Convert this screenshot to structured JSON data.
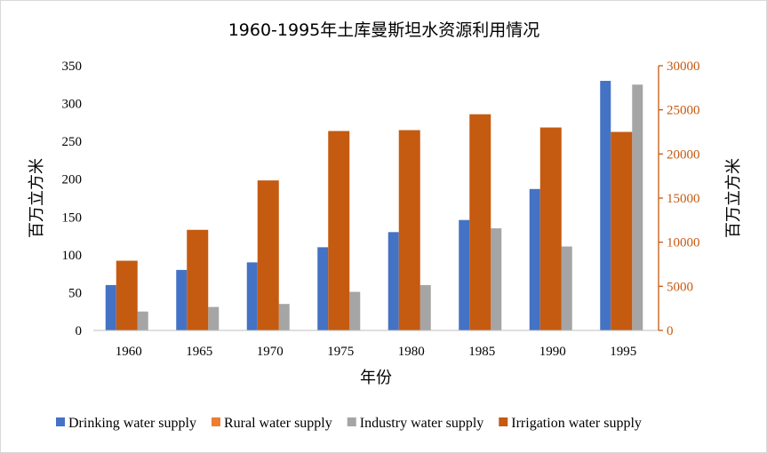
{
  "chart_data": {
    "type": "bar",
    "title": "1960-1995年土库曼斯坦水资源利用情况",
    "xlabel": "年份",
    "ylabel_left": "百万立方米",
    "ylabel_right": "百万立方米",
    "categories": [
      "1960",
      "1965",
      "1970",
      "1975",
      "1980",
      "1985",
      "1990",
      "1995"
    ],
    "ylim_left": [
      0,
      350
    ],
    "yticks_left": [
      0,
      50,
      100,
      150,
      200,
      250,
      300,
      350
    ],
    "ylim_right": [
      0,
      30000
    ],
    "yticks_right": [
      0,
      5000,
      10000,
      15000,
      20000,
      25000,
      30000
    ],
    "series": [
      {
        "name": "Drinking water supply",
        "axis": "left",
        "color": "#4472C4",
        "values": [
          60,
          80,
          90,
          110,
          130,
          146,
          187,
          330
        ]
      },
      {
        "name": "Rural water supply",
        "axis": "left",
        "color": "#ED7D31",
        "values": [
          0,
          0,
          0,
          0,
          0,
          0,
          0,
          0
        ]
      },
      {
        "name": "Industry water supply",
        "axis": "left",
        "color": "#A5A5A5",
        "values": [
          25,
          31,
          35,
          51,
          60,
          135,
          111,
          325
        ]
      },
      {
        "name": "Irrigation water supply",
        "axis": "right",
        "color": "#C55A11",
        "values": [
          7900,
          11400,
          17000,
          22600,
          22700,
          24500,
          23000,
          22500
        ]
      }
    ],
    "legend_position": "bottom",
    "grid": false
  }
}
